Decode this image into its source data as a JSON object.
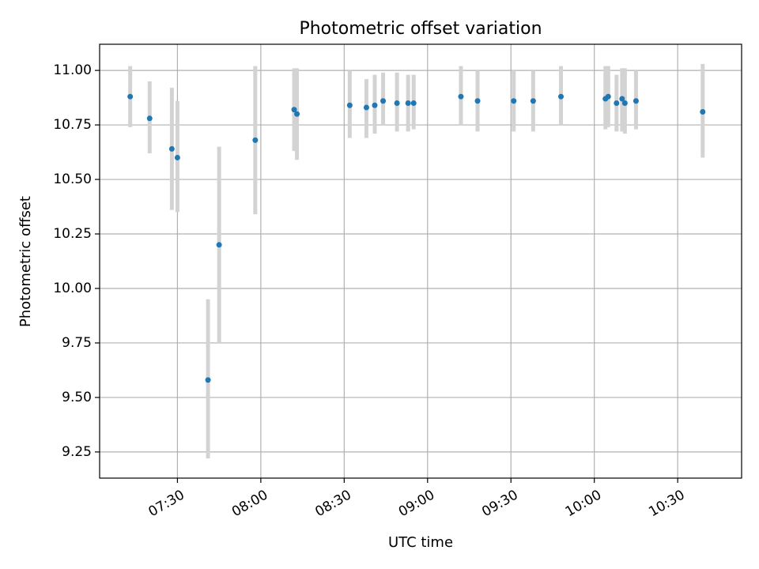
{
  "chart_data": {
    "type": "scatter",
    "title": "Photometric offset variation",
    "xlabel": "UTC time",
    "ylabel": "Photometric offset",
    "x_ticks": [
      "07:30",
      "08:00",
      "08:30",
      "09:00",
      "09:30",
      "10:00",
      "10:30"
    ],
    "y_ticks": [
      "9.25",
      "9.50",
      "9.75",
      "10.00",
      "10.25",
      "10.50",
      "10.75",
      "11.00"
    ],
    "xlim": [
      "07:02",
      "10:53"
    ],
    "ylim": [
      9.13,
      11.12
    ],
    "grid": true,
    "colors": {
      "point": "#1f77b4",
      "errorbar": "#d3d3d3",
      "grid": "#b0b0b0"
    },
    "points": [
      {
        "x": "07:13",
        "y": 10.88,
        "lo": 10.74,
        "hi": 11.02
      },
      {
        "x": "07:20",
        "y": 10.78,
        "lo": 10.62,
        "hi": 10.95
      },
      {
        "x": "07:28",
        "y": 10.64,
        "lo": 10.36,
        "hi": 10.92
      },
      {
        "x": "07:30",
        "y": 10.6,
        "lo": 10.35,
        "hi": 10.86
      },
      {
        "x": "07:41",
        "y": 9.58,
        "lo": 9.22,
        "hi": 9.95
      },
      {
        "x": "07:45",
        "y": 10.2,
        "lo": 9.75,
        "hi": 10.65
      },
      {
        "x": "07:58",
        "y": 10.68,
        "lo": 10.34,
        "hi": 11.02
      },
      {
        "x": "08:12",
        "y": 10.82,
        "lo": 10.63,
        "hi": 11.01
      },
      {
        "x": "08:13",
        "y": 10.8,
        "lo": 10.59,
        "hi": 11.01
      },
      {
        "x": "08:32",
        "y": 10.84,
        "lo": 10.69,
        "hi": 11.0
      },
      {
        "x": "08:38",
        "y": 10.83,
        "lo": 10.69,
        "hi": 10.96
      },
      {
        "x": "08:41",
        "y": 10.84,
        "lo": 10.71,
        "hi": 10.98
      },
      {
        "x": "08:44",
        "y": 10.86,
        "lo": 10.75,
        "hi": 10.99
      },
      {
        "x": "08:49",
        "y": 10.85,
        "lo": 10.72,
        "hi": 10.99
      },
      {
        "x": "08:53",
        "y": 10.85,
        "lo": 10.72,
        "hi": 10.98
      },
      {
        "x": "08:55",
        "y": 10.85,
        "lo": 10.73,
        "hi": 10.98
      },
      {
        "x": "09:12",
        "y": 10.88,
        "lo": 10.75,
        "hi": 11.02
      },
      {
        "x": "09:18",
        "y": 10.86,
        "lo": 10.72,
        "hi": 11.0
      },
      {
        "x": "09:31",
        "y": 10.86,
        "lo": 10.72,
        "hi": 11.0
      },
      {
        "x": "09:38",
        "y": 10.86,
        "lo": 10.72,
        "hi": 11.0
      },
      {
        "x": "09:48",
        "y": 10.88,
        "lo": 10.75,
        "hi": 11.02
      },
      {
        "x": "10:04",
        "y": 10.87,
        "lo": 10.73,
        "hi": 11.02
      },
      {
        "x": "10:05",
        "y": 10.88,
        "lo": 10.74,
        "hi": 11.02
      },
      {
        "x": "10:08",
        "y": 10.85,
        "lo": 10.72,
        "hi": 10.98
      },
      {
        "x": "10:10",
        "y": 10.87,
        "lo": 10.72,
        "hi": 11.01
      },
      {
        "x": "10:11",
        "y": 10.85,
        "lo": 10.71,
        "hi": 11.01
      },
      {
        "x": "10:15",
        "y": 10.86,
        "lo": 10.73,
        "hi": 11.0
      },
      {
        "x": "10:39",
        "y": 10.81,
        "lo": 10.6,
        "hi": 11.03
      }
    ]
  }
}
